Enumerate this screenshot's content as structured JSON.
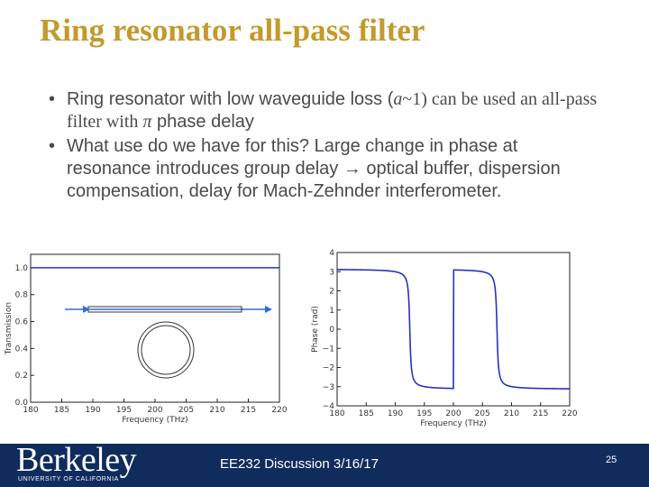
{
  "slide": {
    "title": "Ring resonator all-pass filter",
    "bullets": [
      {
        "pre": "Ring resonator with low waveguide loss (",
        "math": "a",
        "mid": "~1) can be used an all-pass filter with ",
        "math2": "π",
        "post": " phase delay"
      },
      {
        "text": "What use do we have for this? Large change in phase at resonance introduces group delay → optical buffer, dispersion compensation, delay for Mach-Zehnder interferometer."
      }
    ]
  },
  "chart_data": [
    {
      "type": "line",
      "title": "",
      "xlabel": "Frequency (THz)",
      "ylabel": "Transmission",
      "xlim": [
        180,
        220
      ],
      "ylim": [
        0,
        1.1
      ],
      "xticks": [
        "180",
        "185",
        "190",
        "195",
        "200",
        "205",
        "210",
        "215",
        "220"
      ],
      "yticks": [
        "0.0",
        "0.2",
        "0.4",
        "0.6",
        "0.8",
        "1.0"
      ],
      "series": [
        {
          "x": [
            180,
            220
          ],
          "y": [
            1.0,
            1.0
          ],
          "color": "#2233bb"
        }
      ],
      "inset": "ring-resonator-schematic"
    },
    {
      "type": "line",
      "title": "",
      "xlabel": "Frequency (THz)",
      "ylabel": "Phase (rad)",
      "xlim": [
        180,
        220
      ],
      "ylim": [
        -4,
        4
      ],
      "xticks": [
        "180",
        "185",
        "190",
        "195",
        "200",
        "205",
        "210",
        "215",
        "220"
      ],
      "yticks": [
        "−4",
        "−3",
        "−2",
        "−1",
        "0",
        "1",
        "2",
        "3",
        "4"
      ],
      "resonances": [
        192.5,
        207.5
      ],
      "peak_phase": 3.14,
      "series": [
        {
          "color": "#2233bb"
        }
      ]
    }
  ],
  "footer": {
    "logo": "Berkeley",
    "logo_sub": "UNIVERSITY OF CALIFORNIA",
    "text": "EE232 Discussion 3/16/17",
    "page": "25"
  }
}
